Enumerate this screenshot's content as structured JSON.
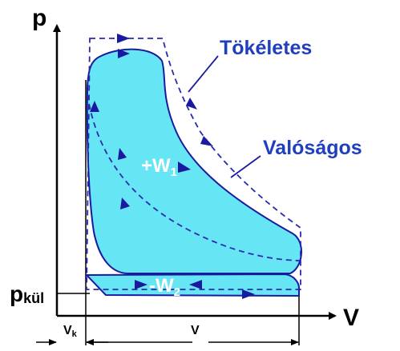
{
  "labels": {
    "p_axis": "p",
    "v_axis": "V",
    "p_outer_main": "p",
    "p_outer_sub": "kül",
    "vk_main": "V",
    "vk_sub": "k",
    "v_span": "V",
    "ideal": "Tökéletes",
    "real": "Valóságos",
    "w1_main": "+W",
    "w1_sub": "1",
    "w2_main": "-W",
    "w2_sub": "2"
  },
  "colors": {
    "fill": "#66e5f5",
    "outline": "#1a1aa0",
    "dashed": "#2a2ab0",
    "label_blue": "#1f3fbf",
    "axis": "#000000"
  }
}
